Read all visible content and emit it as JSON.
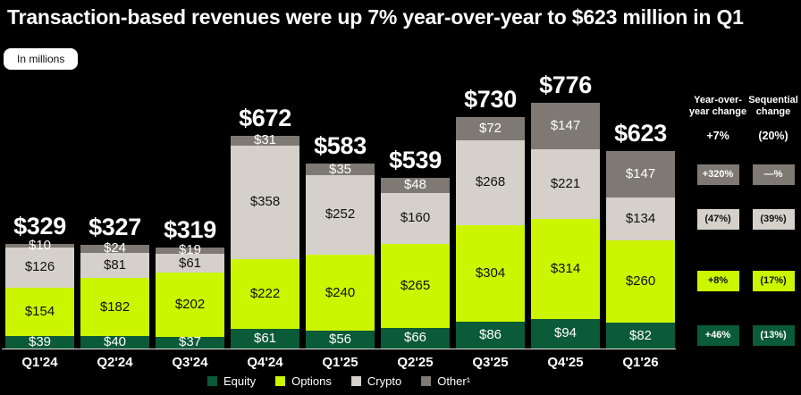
{
  "title": "Transaction-based revenues were up 7% year-over-year to $623 million in Q1",
  "units_label": "In millions",
  "colors": {
    "background": "#000000",
    "equity": "#0b5a38",
    "options": "#ccf500",
    "crypto": "#d5d1ca",
    "other": "#7e7973",
    "axis_line": "#e3e3e3"
  },
  "chart_data": {
    "type": "bar",
    "subtype": "stacked",
    "title": "Transaction-based revenues by product, in millions",
    "categories": [
      "Q1'24",
      "Q2'24",
      "Q3'24",
      "Q4'24",
      "Q1'25",
      "Q2'25",
      "Q3'25",
      "Q4'25",
      "Q1'26"
    ],
    "series": [
      {
        "name": "Equity",
        "color": "#0b5a38",
        "text_color": "#ffffff",
        "values": [
          39,
          40,
          37,
          61,
          56,
          66,
          86,
          94,
          82
        ]
      },
      {
        "name": "Options",
        "color": "#ccf500",
        "text_color": "#101110",
        "values": [
          154,
          182,
          202,
          222,
          240,
          265,
          304,
          314,
          260
        ]
      },
      {
        "name": "Crypto",
        "color": "#d5d1ca",
        "text_color": "#101110",
        "values": [
          126,
          81,
          61,
          358,
          252,
          160,
          268,
          221,
          134
        ]
      },
      {
        "name": "Other¹",
        "color": "#7e7973",
        "text_color": "#ffffff",
        "values": [
          10,
          24,
          19,
          31,
          35,
          48,
          72,
          147,
          147
        ]
      }
    ],
    "totals": [
      329,
      327,
      319,
      672,
      583,
      539,
      730,
      776,
      623
    ],
    "value_prefix": "$",
    "ylim": [
      0,
      800
    ],
    "grid": false,
    "legend_position": "bottom"
  },
  "change_panel": {
    "columns": [
      {
        "title_lines": [
          "Year-over-",
          "year change"
        ],
        "total": "+7%"
      },
      {
        "title_lines": [
          "Sequential",
          "change"
        ],
        "total": "(20%)"
      }
    ],
    "rows": [
      {
        "series": "Other¹",
        "values": [
          "+320%",
          "—%"
        ]
      },
      {
        "series": "Crypto",
        "values": [
          "(47%)",
          "(39%)"
        ]
      },
      {
        "series": "Options",
        "values": [
          "+8%",
          "(17%)"
        ]
      },
      {
        "series": "Equity",
        "values": [
          "+46%",
          "(13%)"
        ]
      }
    ]
  },
  "legend": [
    "Equity",
    "Options",
    "Crypto",
    "Other¹"
  ]
}
